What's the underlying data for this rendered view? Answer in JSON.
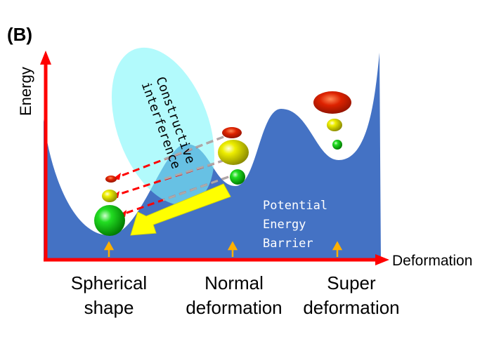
{
  "panel_label": "(B)",
  "y_axis_label": "Energy",
  "x_axis_label": "Deformation",
  "annotation_interference": [
    "Constructive",
    "interference"
  ],
  "annotation_barrier": [
    "Potential",
    "Energy",
    "Barrier"
  ],
  "x_categories": [
    {
      "line1": "Spherical",
      "line2": "shape"
    },
    {
      "line1": "Normal",
      "line2": "deformation"
    },
    {
      "line1": "Super",
      "line2": "deformation"
    }
  ],
  "colors": {
    "axis": "#ff0000",
    "curve_fill": "#4472c4",
    "ellipse": "#7ff6fa",
    "arrow": "#ffff00",
    "marker": "#ffb000"
  }
}
